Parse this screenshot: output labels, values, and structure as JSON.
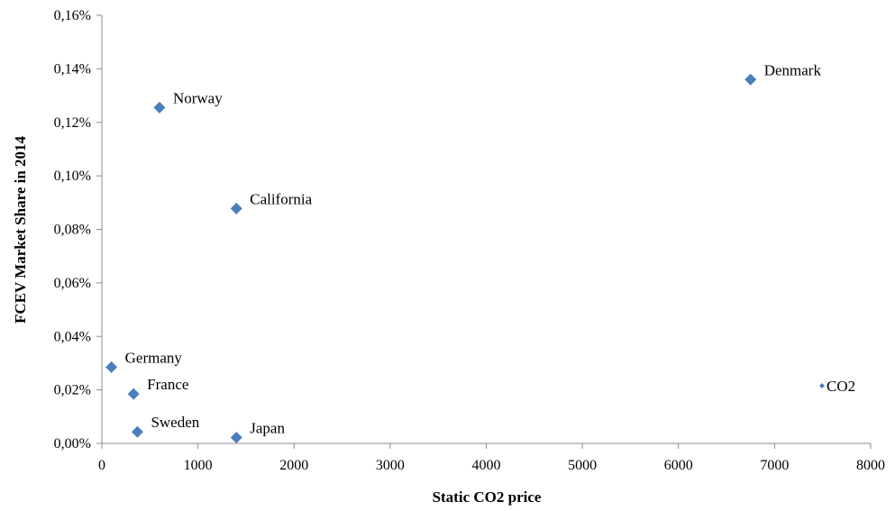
{
  "chart_data": {
    "type": "scatter",
    "title": "",
    "xlabel": "Static CO2 price",
    "ylabel": "FCEV Market Share in 2014",
    "xlim": [
      0,
      8000
    ],
    "ylim": [
      0,
      0.16
    ],
    "x_ticks": [
      0,
      1000,
      2000,
      3000,
      4000,
      5000,
      6000,
      7000,
      8000
    ],
    "y_ticks": [
      "0,00%",
      "0,02%",
      "0,04%",
      "0,06%",
      "0,08%",
      "0,10%",
      "0,12%",
      "0,14%",
      "0,16%"
    ],
    "grid": false,
    "legend": {
      "position": "right",
      "entries": [
        "CO2"
      ]
    },
    "color": "#4A7EBB",
    "marker": "diamond",
    "points": [
      {
        "label": "Norway",
        "x": 600,
        "y": 0.1255
      },
      {
        "label": "Denmark",
        "x": 6750,
        "y": 0.136
      },
      {
        "label": "California",
        "x": 1400,
        "y": 0.0878
      },
      {
        "label": "Germany",
        "x": 100,
        "y": 0.0285
      },
      {
        "label": "France",
        "x": 330,
        "y": 0.0185
      },
      {
        "label": "Sweden",
        "x": 370,
        "y": 0.0043
      },
      {
        "label": "Japan",
        "x": 1400,
        "y": 0.0022
      }
    ]
  }
}
